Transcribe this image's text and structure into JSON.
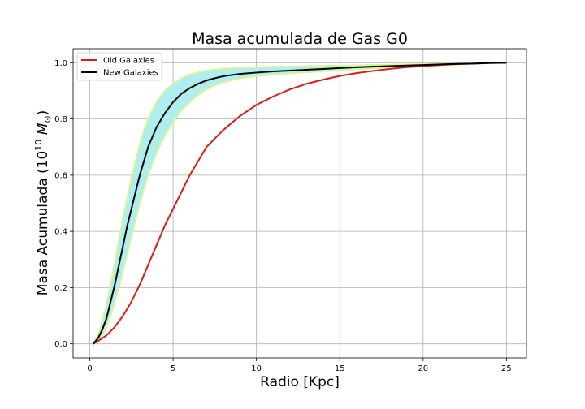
{
  "chart_data": {
    "type": "line",
    "title": "Masa acumulada de Gas G0",
    "xlabel": "Radio [Kpc]",
    "ylabel_prefix": "Masa Acumulada (10",
    "ylabel_exp": "10",
    "ylabel_unit": "M",
    "ylabel_sub": "⊙",
    "ylabel_suffix": ")",
    "xlim": [
      -1,
      26.2
    ],
    "ylim": [
      -0.05,
      1.05
    ],
    "xticks": [
      0,
      5,
      10,
      15,
      20,
      25
    ],
    "yticks": [
      0.0,
      0.2,
      0.4,
      0.6,
      0.8,
      1.0
    ],
    "grid": true,
    "legend_position": "top-left",
    "colors": {
      "old": "#dd1c13",
      "new": "#000000",
      "band_fill": "#aeeeee",
      "band_edge": "#d8f598"
    },
    "series": [
      {
        "name": "Old Galaxies",
        "x": [
          0.2,
          0.5,
          1,
          1.5,
          2,
          2.5,
          3,
          3.5,
          4,
          4.5,
          5,
          6,
          7,
          8,
          9,
          10,
          11,
          12,
          13,
          14,
          15,
          16,
          17,
          18,
          19,
          20,
          21,
          22,
          23,
          24,
          25
        ],
        "y": [
          0.0,
          0.01,
          0.03,
          0.06,
          0.1,
          0.15,
          0.21,
          0.28,
          0.35,
          0.42,
          0.48,
          0.6,
          0.7,
          0.76,
          0.81,
          0.85,
          0.88,
          0.905,
          0.925,
          0.94,
          0.953,
          0.963,
          0.971,
          0.978,
          0.984,
          0.988,
          0.992,
          0.995,
          0.997,
          0.999,
          1.0
        ]
      },
      {
        "name": "New Galaxies",
        "x": [
          0.2,
          0.5,
          0.75,
          1,
          1.25,
          1.5,
          1.75,
          2,
          2.25,
          2.5,
          2.75,
          3,
          3.25,
          3.5,
          4,
          4.5,
          5,
          5.5,
          6,
          6.5,
          7,
          7.5,
          8,
          9,
          10,
          11,
          12,
          13,
          14,
          15,
          16,
          17,
          18,
          19,
          20,
          21,
          22,
          23,
          24,
          25
        ],
        "y": [
          0.0,
          0.02,
          0.05,
          0.09,
          0.15,
          0.21,
          0.28,
          0.35,
          0.42,
          0.48,
          0.54,
          0.6,
          0.65,
          0.7,
          0.77,
          0.82,
          0.86,
          0.89,
          0.91,
          0.925,
          0.937,
          0.945,
          0.952,
          0.96,
          0.965,
          0.969,
          0.972,
          0.975,
          0.978,
          0.981,
          0.984,
          0.986,
          0.988,
          0.99,
          0.992,
          0.994,
          0.996,
          0.997,
          0.999,
          1.0
        ]
      }
    ],
    "band": {
      "x": [
        0.2,
        0.5,
        0.75,
        1,
        1.25,
        1.5,
        1.75,
        2,
        2.25,
        2.5,
        2.75,
        3,
        3.25,
        3.5,
        4,
        4.5,
        5,
        5.5,
        6,
        6.5,
        7,
        7.5,
        8,
        9,
        10,
        11,
        12,
        13,
        14,
        15,
        16,
        17,
        18,
        19,
        20,
        21,
        22,
        23,
        24,
        25
      ],
      "upper": [
        0.0,
        0.03,
        0.08,
        0.14,
        0.21,
        0.29,
        0.37,
        0.45,
        0.52,
        0.59,
        0.65,
        0.71,
        0.76,
        0.8,
        0.86,
        0.9,
        0.925,
        0.945,
        0.958,
        0.966,
        0.972,
        0.976,
        0.979,
        0.982,
        0.984,
        0.986,
        0.987,
        0.988,
        0.989,
        0.99,
        0.991,
        0.992,
        0.993,
        0.994,
        0.995,
        0.996,
        0.997,
        0.998,
        0.999,
        1.0
      ],
      "lower": [
        0.0,
        0.01,
        0.03,
        0.06,
        0.1,
        0.15,
        0.2,
        0.26,
        0.32,
        0.38,
        0.44,
        0.5,
        0.55,
        0.6,
        0.68,
        0.74,
        0.79,
        0.83,
        0.86,
        0.885,
        0.905,
        0.92,
        0.93,
        0.945,
        0.953,
        0.958,
        0.962,
        0.966,
        0.97,
        0.973,
        0.977,
        0.98,
        0.983,
        0.986,
        0.989,
        0.991,
        0.994,
        0.996,
        0.998,
        1.0
      ]
    }
  }
}
